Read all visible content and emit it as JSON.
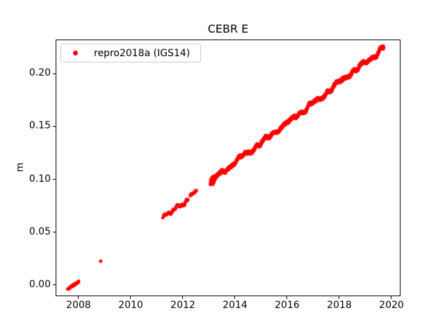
{
  "figure": {
    "background": "#ffffff"
  },
  "chart_data": {
    "type": "scatter",
    "title": "CEBR E",
    "xlabel": "",
    "ylabel": "m",
    "grid": false,
    "axis_color": "#000000",
    "xlim": [
      2007.147,
      2020.32
    ],
    "ylim": [
      -0.0099,
      0.2316
    ],
    "xticks": {
      "values": [
        2008,
        2010,
        2012,
        2014,
        2016,
        2018,
        2020
      ],
      "labels": [
        "2008",
        "2010",
        "2012",
        "2014",
        "2016",
        "2018",
        "2020"
      ]
    },
    "yticks": {
      "values": [
        0.0,
        0.05,
        0.1,
        0.15,
        0.2
      ],
      "labels": [
        "0.00",
        "0.05",
        "0.10",
        "0.15",
        "0.20"
      ]
    },
    "legend": {
      "label": "repro2018a (IGS14)",
      "marker": "dot",
      "marker_color": "#ff0000",
      "position": "upper left"
    },
    "trend_m_per_year": 0.0188,
    "series": [
      {
        "name": "repro2018a (IGS14)",
        "color": "#ff0000",
        "marker_radius_px": 2.2,
        "segments": [
          {
            "x_start": 2007.58,
            "x_end": 2008.01,
            "y_start": -0.004,
            "y_end": 0.004,
            "points": 55,
            "jitter": 0.0011,
            "wiggle_amp": 0.0,
            "wiggle_freq": 0.0
          },
          {
            "x_start": 2008.84,
            "x_end": 2008.86,
            "y_start": 0.0225,
            "y_end": 0.0228,
            "points": 3,
            "jitter": 0.0002,
            "wiggle_amp": 0.0,
            "wiggle_freq": 0.0
          },
          {
            "x_start": 2011.23,
            "x_end": 2012.2,
            "y_start": 0.0635,
            "y_end": 0.0805,
            "points": 150,
            "jitter": 0.0011,
            "wiggle_amp": 0.0013,
            "wiggle_freq": 2.2
          },
          {
            "x_start": 2012.28,
            "x_end": 2012.52,
            "y_start": 0.0845,
            "y_end": 0.0893,
            "points": 35,
            "jitter": 0.0009,
            "wiggle_amp": 0.0,
            "wiggle_freq": 0.0
          },
          {
            "x_start": 2013.05,
            "x_end": 2013.25,
            "y_start": 0.096,
            "y_end": 0.101,
            "points": 55,
            "jitter": 0.0032,
            "wiggle_amp": 0.0018,
            "wiggle_freq": 6.0
          },
          {
            "x_start": 2013.12,
            "x_end": 2019.7,
            "y_start": 0.0995,
            "y_end": 0.2235,
            "points": 2300,
            "jitter": 0.0017,
            "wiggle_amp": 0.0013,
            "wiggle_freq": 1.1
          }
        ]
      }
    ]
  }
}
